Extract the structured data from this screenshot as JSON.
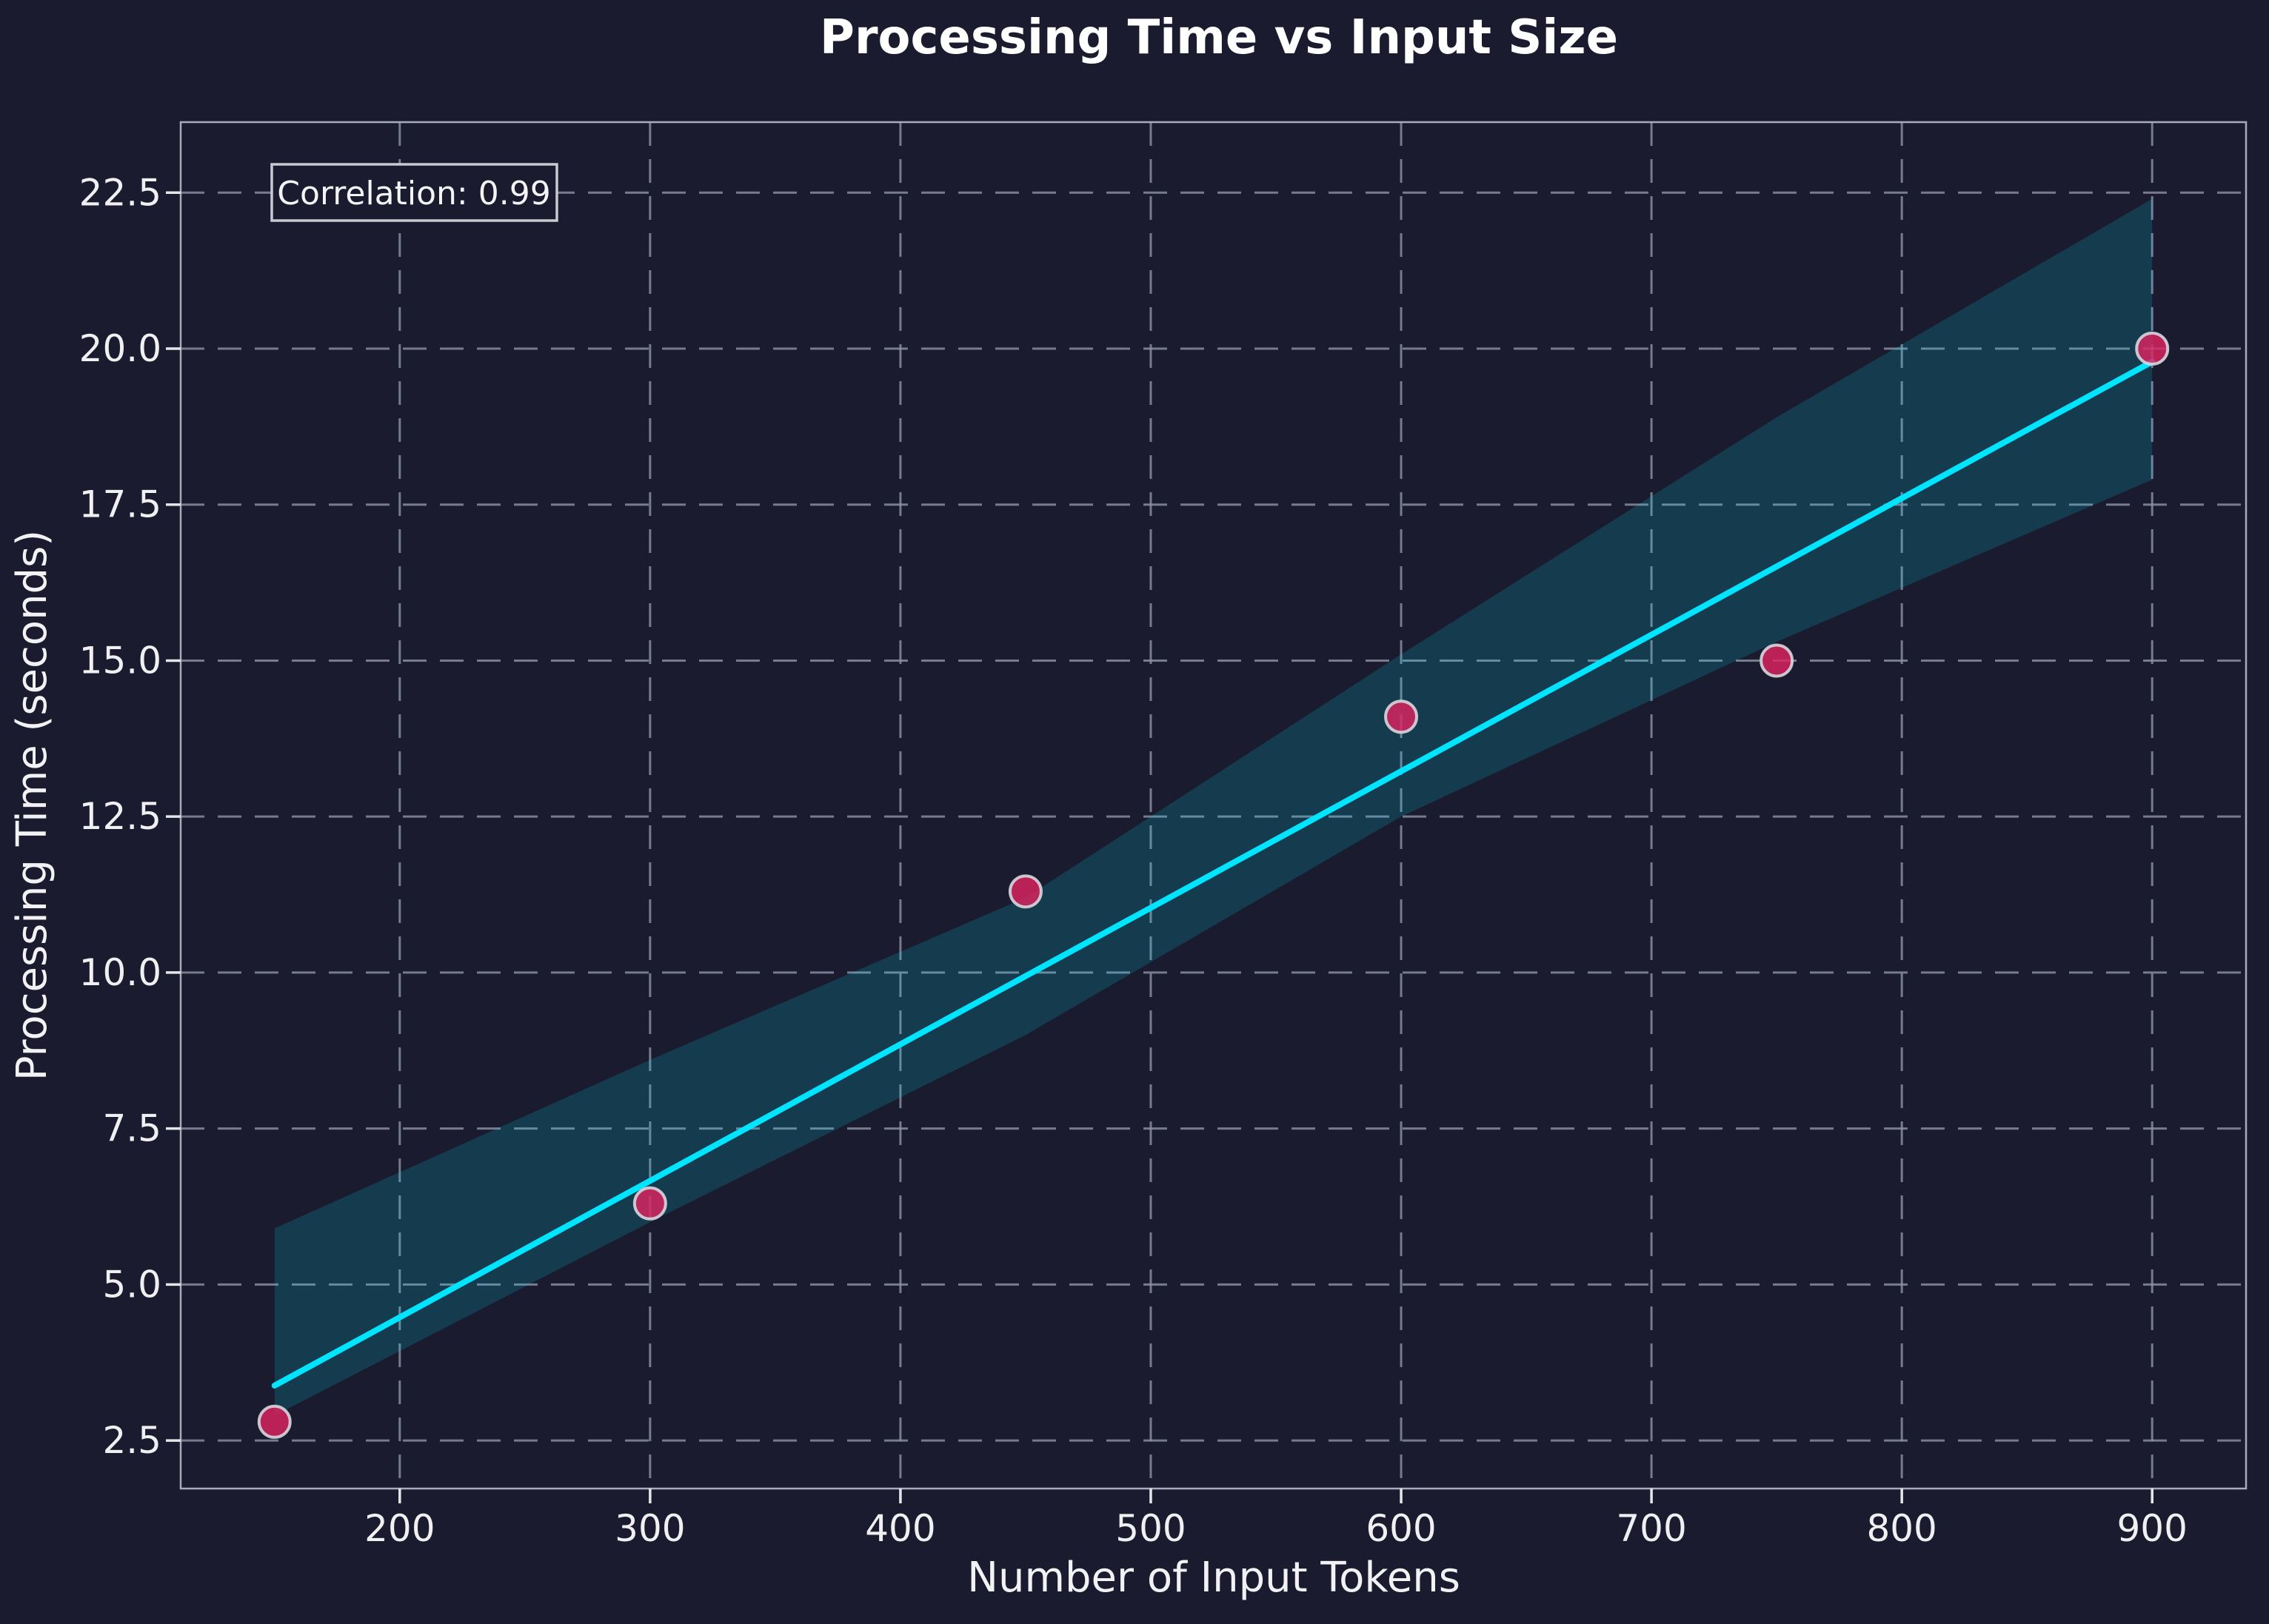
{
  "title": "Processing Time vs Input Size",
  "annotation": {
    "label": "Correlation: 0.99"
  },
  "chart_data": {
    "type": "scatter",
    "title": "Processing Time vs Input Size",
    "xlabel": "Number of Input Tokens",
    "ylabel": "Processing Time (seconds)",
    "x": [
      150,
      300,
      450,
      600,
      750,
      900
    ],
    "y": [
      2.8,
      6.3,
      11.3,
      14.1,
      15.0,
      20.0
    ],
    "regression_line": {
      "x": [
        150,
        900
      ],
      "y": [
        3.38,
        19.79
      ]
    },
    "ci_band": {
      "x": [
        150,
        300,
        450,
        600,
        750,
        900
      ],
      "upper": [
        5.9,
        8.6,
        11.2,
        15.1,
        18.9,
        22.4
      ],
      "lower": [
        2.9,
        6.0,
        9.0,
        12.5,
        15.3,
        17.9
      ]
    },
    "x_ticks": [
      200,
      300,
      400,
      500,
      600,
      700,
      800,
      900
    ],
    "y_ticks": [
      2.5,
      5.0,
      7.5,
      10.0,
      12.5,
      15.0,
      17.5,
      20.0,
      22.5
    ],
    "xlim": [
      112.5,
      937.5
    ],
    "ylim": [
      1.73,
      23.63
    ],
    "grid": true,
    "legend": false,
    "annotation": "Correlation: 0.99",
    "colors": {
      "background": "#1a1b2e",
      "grid": "#8d94a6",
      "spine": "#a7acb9",
      "tick": "#e6e6ea",
      "text": "#f2f2f4",
      "title": "#ffffff",
      "regression_line": "#00e5ff",
      "ci_band": "#00e5ff",
      "ci_band_opacity": 0.16,
      "point_fill": "#de2560",
      "point_opacity": 0.82,
      "point_edge": "#d7d7de"
    }
  }
}
